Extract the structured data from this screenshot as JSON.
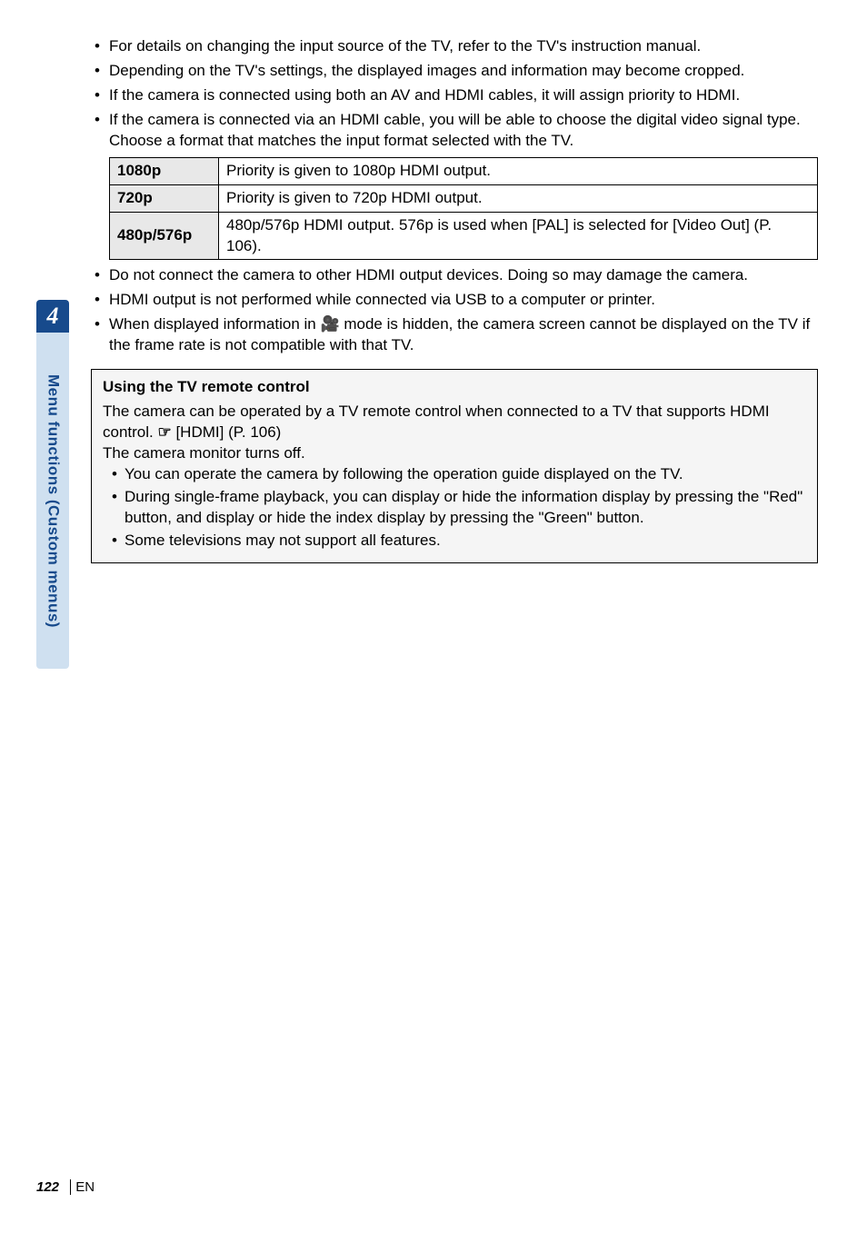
{
  "sideTab": {
    "number": "4",
    "label": "Menu functions (Custom menus)",
    "tabNumberBg": "#174a8c",
    "tabNumberColor": "#ffffff",
    "tabLabelBg": "#cfe0f0",
    "tabLabelColor": "#174a8c"
  },
  "topBullets": [
    "For details on changing the input source of the TV, refer to the TV's instruction manual.",
    "Depending on the TV's settings, the displayed images and information may become cropped.",
    "If the camera is connected using both an AV and HDMI cables, it will assign priority to HDMI.",
    "If the camera is connected via an HDMI cable, you will be able to choose the digital video signal type. Choose a format that matches the input format selected with the TV."
  ],
  "table": {
    "headerBg": "#e8e8e8",
    "border": "#000000",
    "rows": [
      {
        "label": "1080p",
        "desc": "Priority is given to 1080p HDMI output."
      },
      {
        "label": "720p",
        "desc": "Priority is given to 720p HDMI output."
      },
      {
        "label": "480p/576p",
        "desc": "480p/576p HDMI output. 576p is used when [PAL] is selected for [Video Out] (P. 106)."
      }
    ]
  },
  "midBullets": [
    "Do not connect the camera to other HDMI output devices. Doing so may damage the camera.",
    "HDMI output is not performed while connected via USB to a computer or printer."
  ],
  "midBullet3": {
    "prefix": "When displayed information in ",
    "icon": "🎥",
    "suffix": " mode is hidden, the camera screen cannot be displayed on the TV if the frame rate is not compatible with that TV."
  },
  "box": {
    "bg": "#f5f5f5",
    "title": "Using the TV remote control",
    "line1a": "The camera can be operated by a TV remote control when connected to a TV that supports HDMI control. ",
    "pointerIcon": "☞",
    "line1b": " [HDMI] (P. 106)",
    "line2": "The camera monitor turns off.",
    "subBullets": [
      "You can operate the camera by following the operation guide displayed on the TV.",
      "During single-frame playback, you can display or hide the information display by pressing the \"Red\" button, and display or hide the index display by pressing the \"Green\" button.",
      "Some televisions may not support all features."
    ]
  },
  "footer": {
    "pageNumber": "122",
    "lang": "EN"
  }
}
